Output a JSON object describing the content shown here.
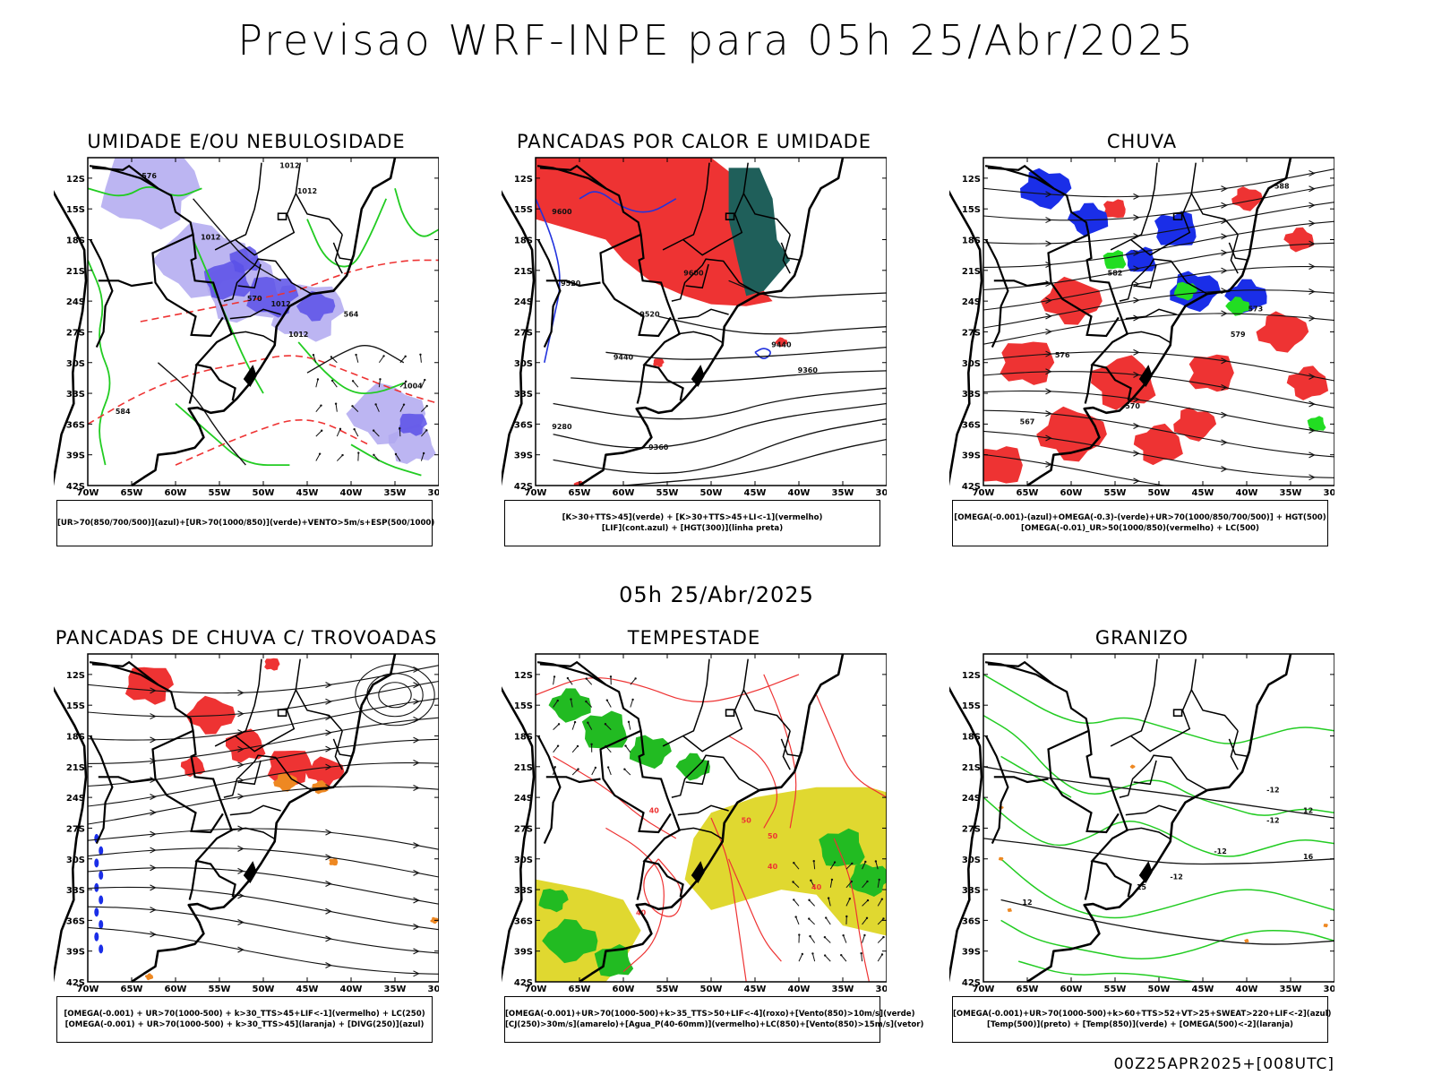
{
  "main_title": "Previsao WRF-INPE  para 05h 25/Abr/2025",
  "mid_title": "05h 25/Abr/2025",
  "footer_stamp": "00Z25APR2025+[008UTC]",
  "axes": {
    "lat_ticks": [
      "12S",
      "15S",
      "18S",
      "21S",
      "24S",
      "27S",
      "30S",
      "33S",
      "36S",
      "39S",
      "42S"
    ],
    "lon_ticks": [
      "70W",
      "65W",
      "60W",
      "55W",
      "50W",
      "45W",
      "40W",
      "35W",
      "30W"
    ]
  },
  "panels": [
    {
      "id": "umidade",
      "title": "UMIDADE E/OU NEBULOSIDADE",
      "legend": [
        "[UR>70(850/700/500)](azul)+[UR>70(1000/850)](verde)+VENTO>5m/s+ESP(500/1000)"
      ],
      "labels": [
        "1012",
        "1012",
        "1012",
        "1012",
        "1012",
        "1004",
        "576",
        "570",
        "584",
        "564"
      ],
      "colors": {
        "fill1": "#b0a8f0",
        "fill2": "#5a50e8",
        "line1": "#22cc22",
        "line2": "#ee3333"
      }
    },
    {
      "id": "pancadas_calor",
      "title": "PANCADAS POR CALOR E UMIDADE",
      "legend": [
        "[K>30+TTS>45](verde) + [K>30+TTS>45+LI<-1](vermelho)",
        "[LIF](cont.azul) + [HGT(300)](linha preta)"
      ],
      "labels": [
        "9600",
        "9600",
        "9520",
        "9520",
        "9440",
        "9440",
        "9360",
        "9280",
        "9360"
      ],
      "colors": {
        "fill1": "#ee3333",
        "fill2": "#1f5f5a",
        "line1": "#2233dd",
        "line2": "#111111"
      }
    },
    {
      "id": "chuva",
      "title": "CHUVA",
      "legend": [
        "[OMEGA(-0.001)-(azul)+OMEGA(-0.3)-(verde)+UR>70(1000/850/700/500)] + HGT(500)",
        "[OMEGA(-0.01)_UR>50(1000/850)(vermelho) + LC(500)"
      ],
      "labels": [
        "582",
        "576",
        "570",
        "567",
        "573",
        "579",
        "588"
      ],
      "colors": {
        "fill1": "#ee3333",
        "fill2": "#1a2ee8",
        "fill3": "#22dd22",
        "line1": "#111111"
      }
    },
    {
      "id": "pancadas_trovoadas",
      "title": "PANCADAS DE CHUVA C/ TROVOADAS",
      "legend": [
        "[OMEGA(-0.001) + UR>70(1000-500) + k>30_TTS>45+LIF<-1](vermelho) + LC(250)",
        "[OMEGA(-0.001) + UR>70(1000-500) + k>30_TTS>45](laranja) + [DIVG(250)](azul)"
      ],
      "labels": [],
      "colors": {
        "fill1": "#ee3333",
        "fill2": "#ee8822",
        "fill3": "#1a2ee8",
        "line1": "#111111"
      }
    },
    {
      "id": "tempestade",
      "title": "TEMPESTADE",
      "legend": [
        "[OMEGA(-0.001)+UR>70(1000-500)+k>35_TTS>50+LIF<-4](roxo)+[Vento(850)>10m/s](verde)",
        "[CJ(250)>30m/s](amarelo)+[Agua_P(40-60mm)](vermelho)+LC(850)+[Vento(850)>15m/s](vetor)"
      ],
      "labels": [
        "40",
        "40",
        "50",
        "50",
        "40",
        "40"
      ],
      "colors": {
        "fill1": "#22bb22",
        "fill2": "#e0d830",
        "line1": "#ee3333"
      }
    },
    {
      "id": "granizo",
      "title": "GRANIZO",
      "legend": [
        "[OMEGA(-0.001)+UR>70(1000-500)+k>60+TTS>52+VT>25+SWEAT>220+LIF<-2](azul)",
        "[Temp(500)](preto) + [Temp(850)](verde) + [OMEGA(500)<-2](laranja)"
      ],
      "labels": [
        "-12",
        "-12",
        "-12",
        "-12",
        "12",
        "12",
        "15",
        "16"
      ],
      "colors": {
        "line1": "#22cc22",
        "line2": "#111111",
        "fill1": "#ee8822"
      }
    }
  ]
}
